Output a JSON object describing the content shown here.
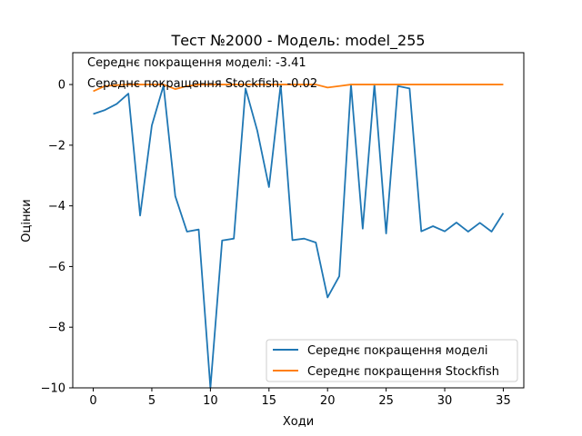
{
  "chart_data": {
    "type": "line",
    "title": "Тест №2000 - Модель: model_255",
    "xlabel": "Ходи",
    "ylabel": "Оцінки",
    "xlim": [
      -1.75,
      36.75
    ],
    "ylim": [
      -10,
      1.05
    ],
    "xticks": [
      0,
      5,
      10,
      15,
      20,
      25,
      30,
      35
    ],
    "yticks": [
      0,
      -2,
      -4,
      -6,
      -8,
      -10
    ],
    "grid": false,
    "legend_position": "lower-right",
    "annotations": [
      "Середнє покращення моделі: -3.41",
      "Середнє покращення Stockfish: -0.02"
    ],
    "series": [
      {
        "name": "Середнє покращення моделі",
        "color": "#1f77b4",
        "x": [
          0,
          1,
          2,
          3,
          4,
          5,
          6,
          7,
          8,
          9,
          10,
          11,
          12,
          13,
          14,
          15,
          16,
          17,
          18,
          19,
          20,
          21,
          22,
          23,
          24,
          25,
          26,
          27,
          28,
          29,
          30,
          31,
          32,
          33,
          34,
          35
        ],
        "values": [
          -0.97,
          -0.84,
          -0.64,
          -0.3,
          -4.32,
          -1.35,
          -0.03,
          -3.68,
          -4.85,
          -4.78,
          -10.0,
          -5.14,
          -5.08,
          -0.13,
          -1.52,
          -3.38,
          0.0,
          -5.13,
          -5.08,
          -5.21,
          -7.02,
          -6.32,
          0.0,
          -4.75,
          0.0,
          -4.91,
          -0.05,
          -0.13,
          -4.84,
          -4.67,
          -4.84,
          -4.55,
          -4.85,
          -4.56,
          -4.85,
          -4.24
        ]
      },
      {
        "name": "Середнє покращення Stockfish",
        "color": "#ff7f0e",
        "x": [
          0,
          1,
          2,
          3,
          4,
          5,
          6,
          7,
          8,
          9,
          10,
          11,
          12,
          13,
          14,
          15,
          16,
          17,
          18,
          19,
          20,
          21,
          22,
          23,
          24,
          25,
          26,
          27,
          28,
          29,
          30,
          31,
          32,
          33,
          34,
          35
        ],
        "values": [
          -0.22,
          -0.05,
          -0.02,
          0.0,
          0.0,
          0.0,
          0.0,
          -0.15,
          -0.05,
          0.0,
          0.0,
          0.0,
          0.0,
          0.0,
          0.0,
          0.0,
          0.0,
          0.0,
          0.0,
          0.0,
          -0.1,
          -0.05,
          0.0,
          0.0,
          0.0,
          0.0,
          0.0,
          0.0,
          0.0,
          0.0,
          0.0,
          0.0,
          0.0,
          0.0,
          0.0,
          0.0
        ]
      }
    ]
  }
}
